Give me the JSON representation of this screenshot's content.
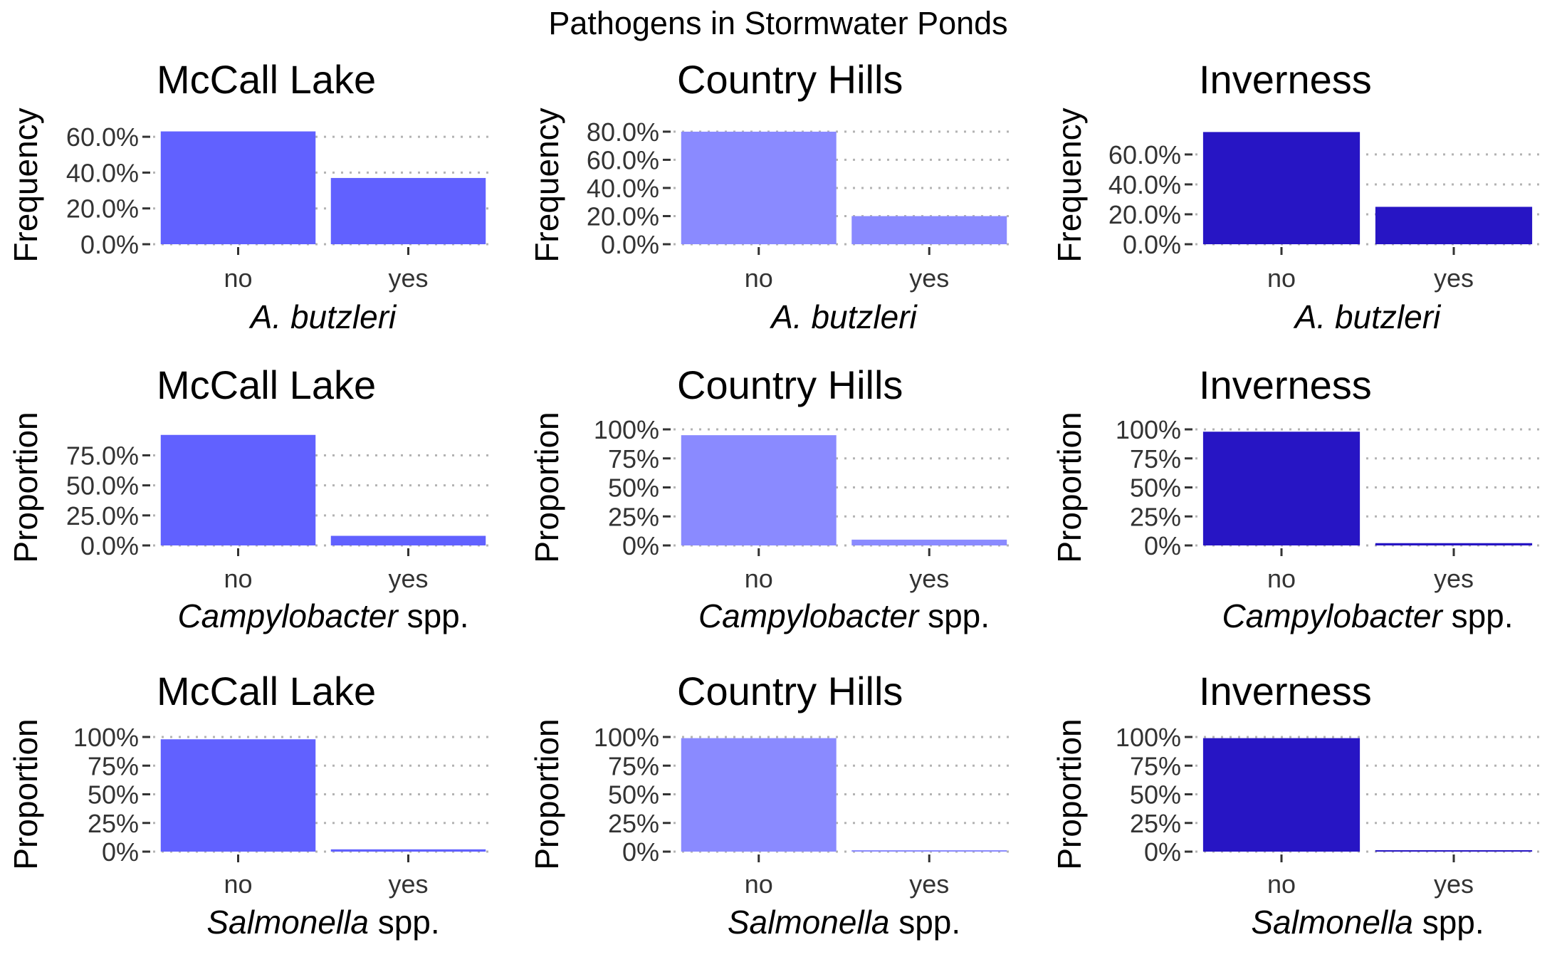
{
  "figure": {
    "title": "Pathogens in Stormwater Ponds"
  },
  "colors": {
    "McCall Lake": "#6161ff",
    "Country Hills": "#8a8aff",
    "Inverness": "#2715c4"
  },
  "chart_data": [
    {
      "type": "bar",
      "row": 0,
      "col": 0,
      "title": "McCall Lake",
      "ylabel": "Frequency",
      "xlabel_italic": "A. butzleri",
      "xlabel_rest": "",
      "categories": [
        "no",
        "yes"
      ],
      "values": [
        0.63,
        0.37
      ],
      "ylim": [
        0,
        0.66
      ],
      "yticks": [
        0,
        0.2,
        0.4,
        0.6
      ],
      "yticklabels": [
        "0.0%",
        "20.0%",
        "40.0%",
        "60.0%"
      ],
      "color": "#6161ff"
    },
    {
      "type": "bar",
      "row": 0,
      "col": 1,
      "title": "Country Hills",
      "ylabel": "Frequency",
      "xlabel_italic": "A. butzleri",
      "xlabel_rest": "",
      "categories": [
        "no",
        "yes"
      ],
      "values": [
        0.8,
        0.2
      ],
      "ylim": [
        0,
        0.84
      ],
      "yticks": [
        0,
        0.2,
        0.4,
        0.6,
        0.8
      ],
      "yticklabels": [
        "0.0%",
        "20.0%",
        "40.0%",
        "60.0%",
        "80.0%"
      ],
      "color": "#8a8aff"
    },
    {
      "type": "bar",
      "row": 0,
      "col": 2,
      "title": "Inverness",
      "ylabel": "Frequency",
      "xlabel_italic": "A. butzleri",
      "xlabel_rest": "",
      "categories": [
        "no",
        "yes"
      ],
      "values": [
        0.75,
        0.25
      ],
      "ylim": [
        0,
        0.79
      ],
      "yticks": [
        0,
        0.2,
        0.4,
        0.6
      ],
      "yticklabels": [
        "0.0%",
        "20.0%",
        "40.0%",
        "60.0%"
      ],
      "color": "#2715c4"
    },
    {
      "type": "bar",
      "row": 1,
      "col": 0,
      "title": "McCall Lake",
      "ylabel": "Proportion",
      "xlabel_italic": "Campylobacter",
      "xlabel_rest": " spp.",
      "categories": [
        "no",
        "yes"
      ],
      "values": [
        0.92,
        0.08
      ],
      "ylim": [
        0,
        0.966
      ],
      "yticks": [
        0,
        0.25,
        0.5,
        0.75
      ],
      "yticklabels": [
        "0.0%",
        "25.0%",
        "50.0%",
        "75.0%"
      ],
      "color": "#6161ff"
    },
    {
      "type": "bar",
      "row": 1,
      "col": 1,
      "title": "Country Hills",
      "ylabel": "Proportion",
      "xlabel_italic": "Campylobacter",
      "xlabel_rest": " spp.",
      "categories": [
        "no",
        "yes"
      ],
      "values": [
        0.95,
        0.05
      ],
      "ylim": [
        0,
        1.0
      ],
      "yticks": [
        0,
        0.25,
        0.5,
        0.75,
        1.0
      ],
      "yticklabels": [
        "0%",
        "25%",
        "50%",
        "75%",
        "100%"
      ],
      "color": "#8a8aff"
    },
    {
      "type": "bar",
      "row": 1,
      "col": 2,
      "title": "Inverness",
      "ylabel": "Proportion",
      "xlabel_italic": "Campylobacter",
      "xlabel_rest": " spp.",
      "categories": [
        "no",
        "yes"
      ],
      "values": [
        0.98,
        0.02
      ],
      "ylim": [
        0,
        1.0
      ],
      "yticks": [
        0,
        0.25,
        0.5,
        0.75,
        1.0
      ],
      "yticklabels": [
        "0%",
        "25%",
        "50%",
        "75%",
        "100%"
      ],
      "color": "#2715c4"
    },
    {
      "type": "bar",
      "row": 2,
      "col": 0,
      "title": "McCall Lake",
      "ylabel": "Proportion",
      "xlabel_italic": "Salmonella",
      "xlabel_rest": " spp.",
      "categories": [
        "no",
        "yes"
      ],
      "values": [
        0.98,
        0.02
      ],
      "ylim": [
        0,
        1.0
      ],
      "yticks": [
        0,
        0.25,
        0.5,
        0.75,
        1.0
      ],
      "yticklabels": [
        "0%",
        "25%",
        "50%",
        "75%",
        "100%"
      ],
      "color": "#6161ff"
    },
    {
      "type": "bar",
      "row": 2,
      "col": 1,
      "title": "Country Hills",
      "ylabel": "Proportion",
      "xlabel_italic": "Salmonella",
      "xlabel_rest": " spp.",
      "categories": [
        "no",
        "yes"
      ],
      "values": [
        0.99,
        0.01
      ],
      "ylim": [
        0,
        1.0
      ],
      "yticks": [
        0,
        0.25,
        0.5,
        0.75,
        1.0
      ],
      "yticklabels": [
        "0%",
        "25%",
        "50%",
        "75%",
        "100%"
      ],
      "color": "#8a8aff"
    },
    {
      "type": "bar",
      "row": 2,
      "col": 2,
      "title": "Inverness",
      "ylabel": "Proportion",
      "xlabel_italic": "Salmonella",
      "xlabel_rest": " spp.",
      "categories": [
        "no",
        "yes"
      ],
      "values": [
        0.99,
        0.01
      ],
      "ylim": [
        0,
        1.0
      ],
      "yticks": [
        0,
        0.25,
        0.5,
        0.75,
        1.0
      ],
      "yticklabels": [
        "0%",
        "25%",
        "50%",
        "75%",
        "100%"
      ],
      "color": "#2715c4"
    }
  ]
}
